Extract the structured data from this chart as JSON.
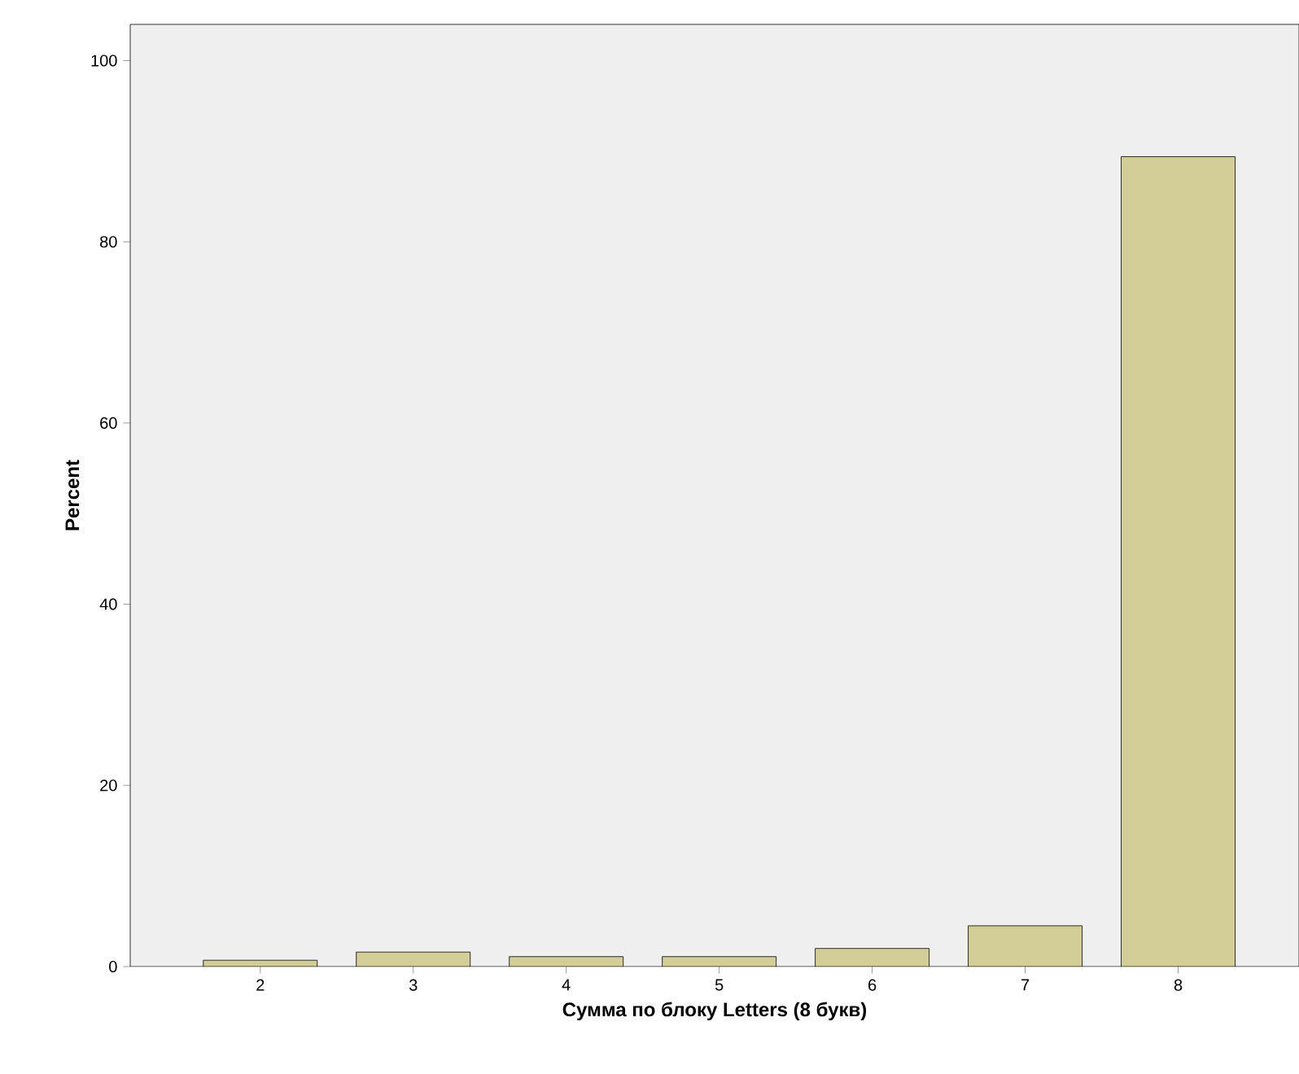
{
  "chart_data": {
    "type": "bar",
    "xlabel": "Сумма по блоку Letters (8 букв)",
    "ylabel": "Percent",
    "categories": [
      "2",
      "3",
      "4",
      "5",
      "6",
      "7",
      "8"
    ],
    "values": [
      0.7,
      1.6,
      1.1,
      1.1,
      2.0,
      4.5,
      89.4
    ],
    "color": "#d3ce97",
    "ylim": [
      0,
      104
    ],
    "yticks": [
      0,
      20,
      40,
      60,
      80,
      100
    ],
    "grid": false
  }
}
